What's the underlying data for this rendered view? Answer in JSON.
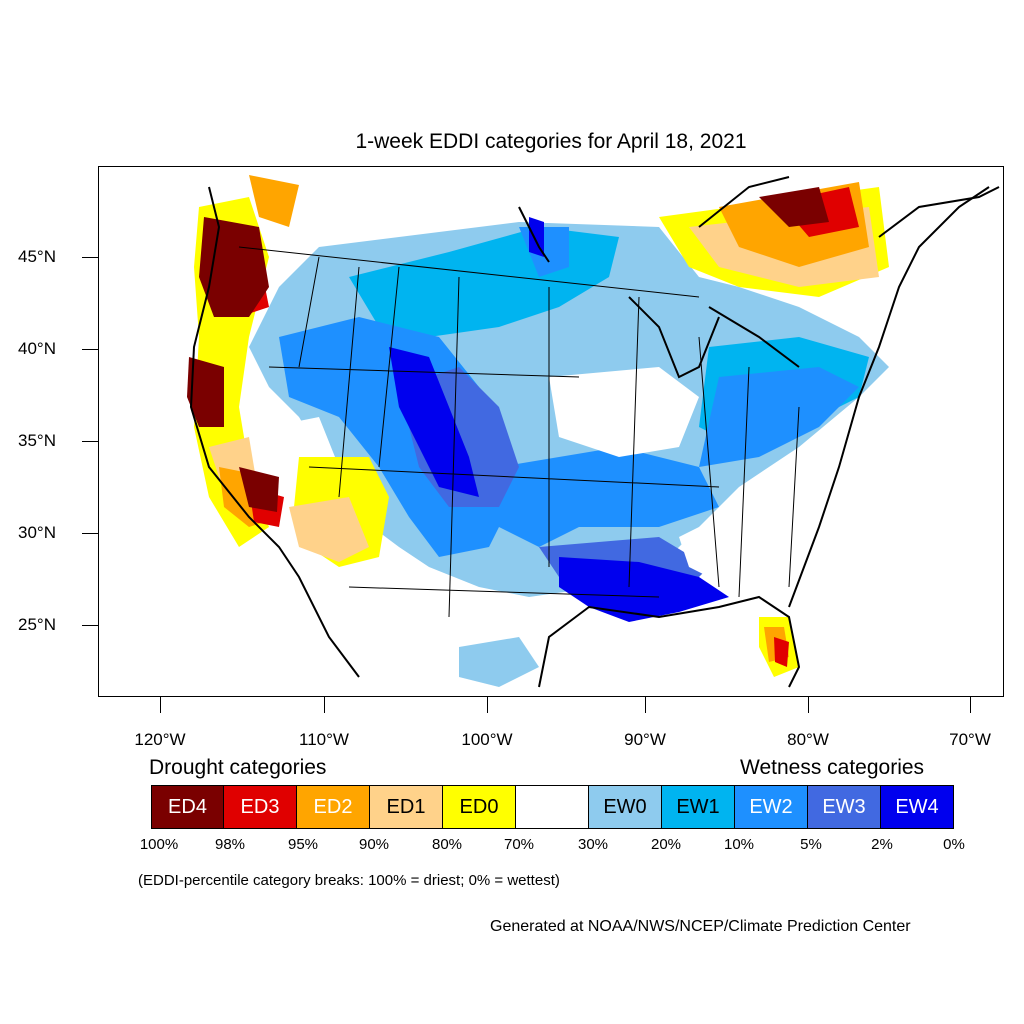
{
  "title": "1-week EDDI categories for April 18, 2021",
  "lat_labels": [
    "45°N",
    "40°N",
    "35°N",
    "30°N",
    "25°N"
  ],
  "lon_labels": [
    "120°W",
    "110°W",
    "100°W",
    "90°W",
    "80°W",
    "70°W"
  ],
  "legend": {
    "drought_heading": "Drought categories",
    "wetness_heading": "Wetness categories",
    "categories": [
      {
        "label": "ED4",
        "color": "#7a0000"
      },
      {
        "label": "ED3",
        "color": "#e00000"
      },
      {
        "label": "ED2",
        "color": "#ffa500"
      },
      {
        "label": "ED1",
        "color": "#ffd28a"
      },
      {
        "label": "ED0",
        "color": "#ffff00"
      },
      {
        "label": "",
        "color": "#ffffff"
      },
      {
        "label": "EW0",
        "color": "#8ecbee"
      },
      {
        "label": "EW1",
        "color": "#00b4f0"
      },
      {
        "label": "EW2",
        "color": "#1e90ff"
      },
      {
        "label": "EW3",
        "color": "#4169e1"
      },
      {
        "label": "EW4",
        "color": "#0000ee"
      }
    ],
    "percent_breaks": [
      "100%",
      "98%",
      "95%",
      "90%",
      "80%",
      "70%",
      "30%",
      "20%",
      "10%",
      "5%",
      "2%",
      "0%"
    ]
  },
  "note": "(EDDI-percentile category breaks: 100% = driest; 0% = wettest)",
  "credit": "Generated at NOAA/NWS/NCEP/Climate Prediction Center"
}
